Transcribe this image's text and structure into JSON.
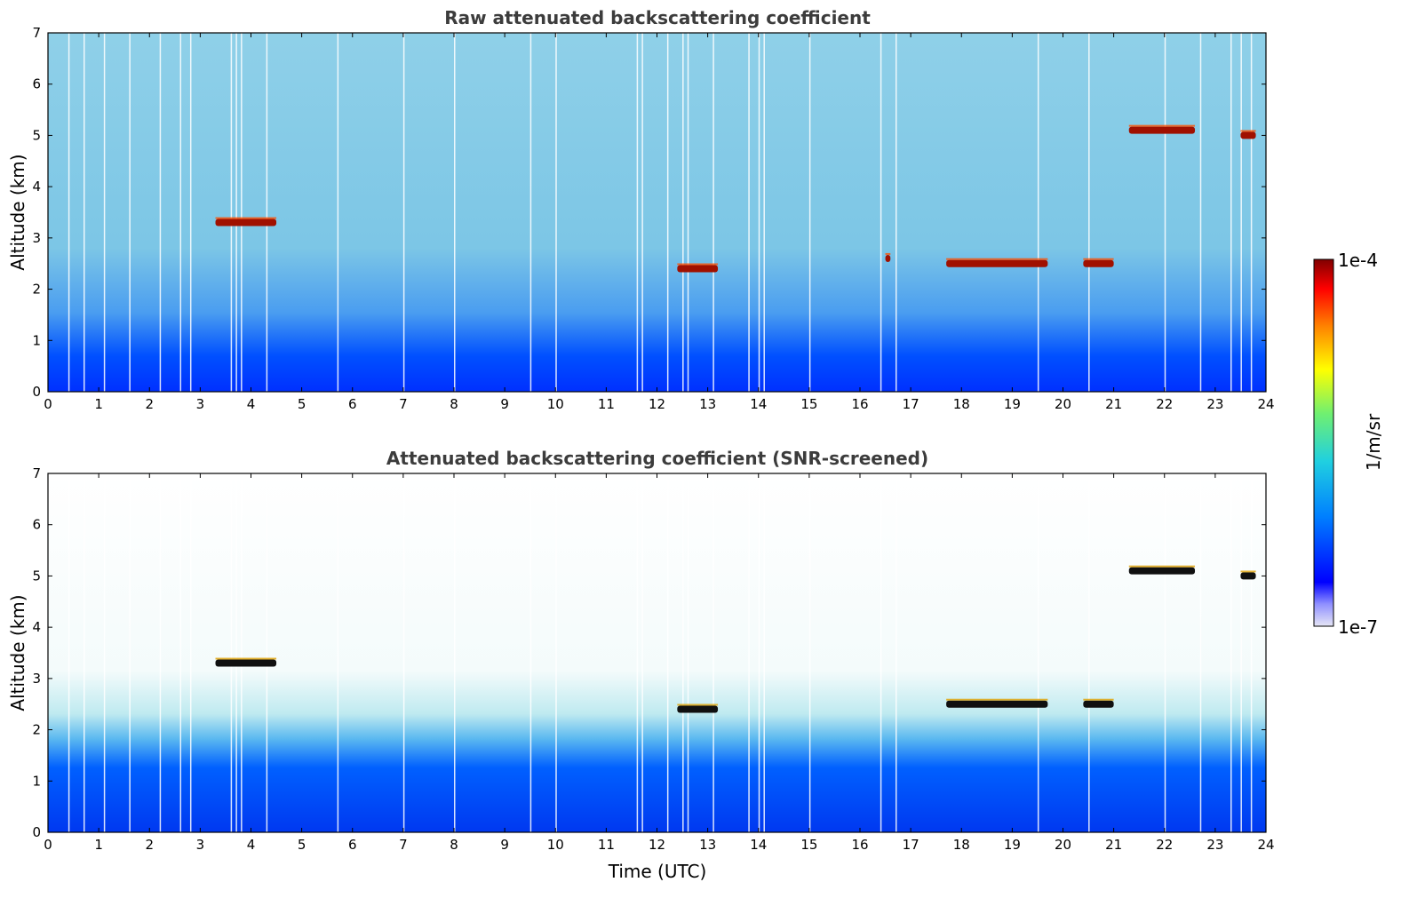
{
  "chart_data": [
    {
      "type": "heatmap",
      "title": "Raw attenuated backscattering coefficient",
      "xlabel": "",
      "ylabel": "Altitude (km)",
      "xlim": [
        0,
        24
      ],
      "ylim": [
        0,
        7
      ],
      "xticks": [
        0,
        1,
        2,
        3,
        4,
        5,
        6,
        7,
        8,
        9,
        10,
        11,
        12,
        13,
        14,
        15,
        16,
        17,
        18,
        19,
        20,
        21,
        22,
        23,
        24
      ],
      "yticks": [
        0,
        1,
        2,
        3,
        4,
        5,
        6,
        7
      ],
      "features": [
        {
          "kind": "cloud",
          "t_start": 3.3,
          "t_end": 4.5,
          "alt": 3.3
        },
        {
          "kind": "cloud",
          "t_start": 12.4,
          "t_end": 13.2,
          "alt": 2.4
        },
        {
          "kind": "cloud",
          "t_start": 16.5,
          "t_end": 16.6,
          "alt": 2.6
        },
        {
          "kind": "cloud",
          "t_start": 17.7,
          "t_end": 19.7,
          "alt": 2.5
        },
        {
          "kind": "cloud",
          "t_start": 20.4,
          "t_end": 21.0,
          "alt": 2.5
        },
        {
          "kind": "cloud",
          "t_start": 21.3,
          "t_end": 22.6,
          "alt": 5.1
        },
        {
          "kind": "cloud",
          "t_start": 23.5,
          "t_end": 23.8,
          "alt": 5.0
        }
      ]
    },
    {
      "type": "heatmap",
      "title": "Attenuated backscattering coefficient (SNR-screened)",
      "xlabel": "Time (UTC)",
      "ylabel": "Altitude (km)",
      "xlim": [
        0,
        24
      ],
      "ylim": [
        0,
        7
      ],
      "xticks": [
        0,
        1,
        2,
        3,
        4,
        5,
        6,
        7,
        8,
        9,
        10,
        11,
        12,
        13,
        14,
        15,
        16,
        17,
        18,
        19,
        20,
        21,
        22,
        23,
        24
      ],
      "yticks": [
        0,
        1,
        2,
        3,
        4,
        5,
        6,
        7
      ],
      "features": [
        {
          "kind": "cloud",
          "t_start": 3.3,
          "t_end": 4.5,
          "alt": 3.3
        },
        {
          "kind": "cloud",
          "t_start": 12.4,
          "t_end": 13.2,
          "alt": 2.4
        },
        {
          "kind": "cloud",
          "t_start": 17.7,
          "t_end": 19.7,
          "alt": 2.5
        },
        {
          "kind": "cloud",
          "t_start": 20.4,
          "t_end": 21.0,
          "alt": 2.5
        },
        {
          "kind": "cloud",
          "t_start": 21.3,
          "t_end": 22.6,
          "alt": 5.1
        },
        {
          "kind": "cloud",
          "t_start": 23.5,
          "t_end": 23.8,
          "alt": 5.0
        }
      ]
    }
  ],
  "colorbar": {
    "label": "1/m/sr",
    "max_label": "1e-4",
    "min_label": "1e-7",
    "scale": "log",
    "range": [
      1e-07,
      0.0001
    ],
    "colors": [
      "#e6e6f5",
      "#0000ff",
      "#00aaff",
      "#40e0c0",
      "#ffff00",
      "#ff8000",
      "#ff0000",
      "#800000"
    ]
  }
}
